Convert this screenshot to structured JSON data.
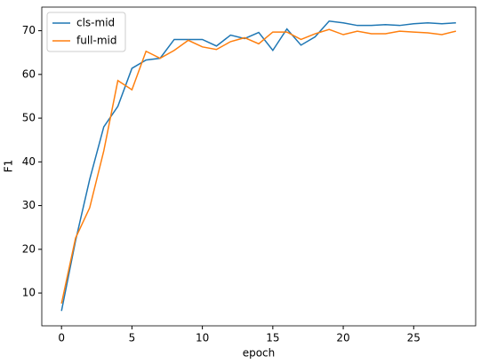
{
  "chart_data": {
    "type": "line",
    "x": [
      0,
      1,
      2,
      3,
      4,
      5,
      6,
      7,
      8,
      9,
      10,
      11,
      12,
      13,
      14,
      15,
      16,
      17,
      18,
      19,
      20,
      21,
      22,
      23,
      24,
      25,
      26,
      27,
      28
    ],
    "x_label": "epoch",
    "y_label": "F1",
    "series": [
      {
        "name": "cls-mid",
        "color": "#1f77b4",
        "values": [
          5.9,
          22,
          36,
          48,
          52.7,
          61.4,
          63.3,
          63.7,
          68,
          68,
          68,
          66.5,
          69,
          68.2,
          69.6,
          65.5,
          70.4,
          66.7,
          68.6,
          72.2,
          71.8,
          71.2,
          71.2,
          71.4,
          71.2,
          71.6,
          71.8,
          71.6,
          71.8
        ]
      },
      {
        "name": "full-mid",
        "color": "#ff7f0e",
        "values": [
          7.6,
          22.6,
          29.5,
          42.5,
          58.6,
          56.5,
          65.3,
          63.7,
          65.5,
          67.8,
          66.3,
          65.7,
          67.5,
          68.4,
          67,
          69.7,
          69.7,
          68,
          69.3,
          70.3,
          69.1,
          69.9,
          69.3,
          69.3,
          69.9,
          69.7,
          69.5,
          69.1,
          69.9
        ]
      }
    ],
    "xlim": [
      -1.4,
      29.4
    ],
    "xticks": [
      0,
      5,
      10,
      15,
      20,
      25
    ],
    "ylim": [
      2.5,
      75.4
    ],
    "yticks": [
      10,
      20,
      30,
      40,
      50,
      60,
      70
    ],
    "grid": false,
    "legend": "upper-left"
  }
}
